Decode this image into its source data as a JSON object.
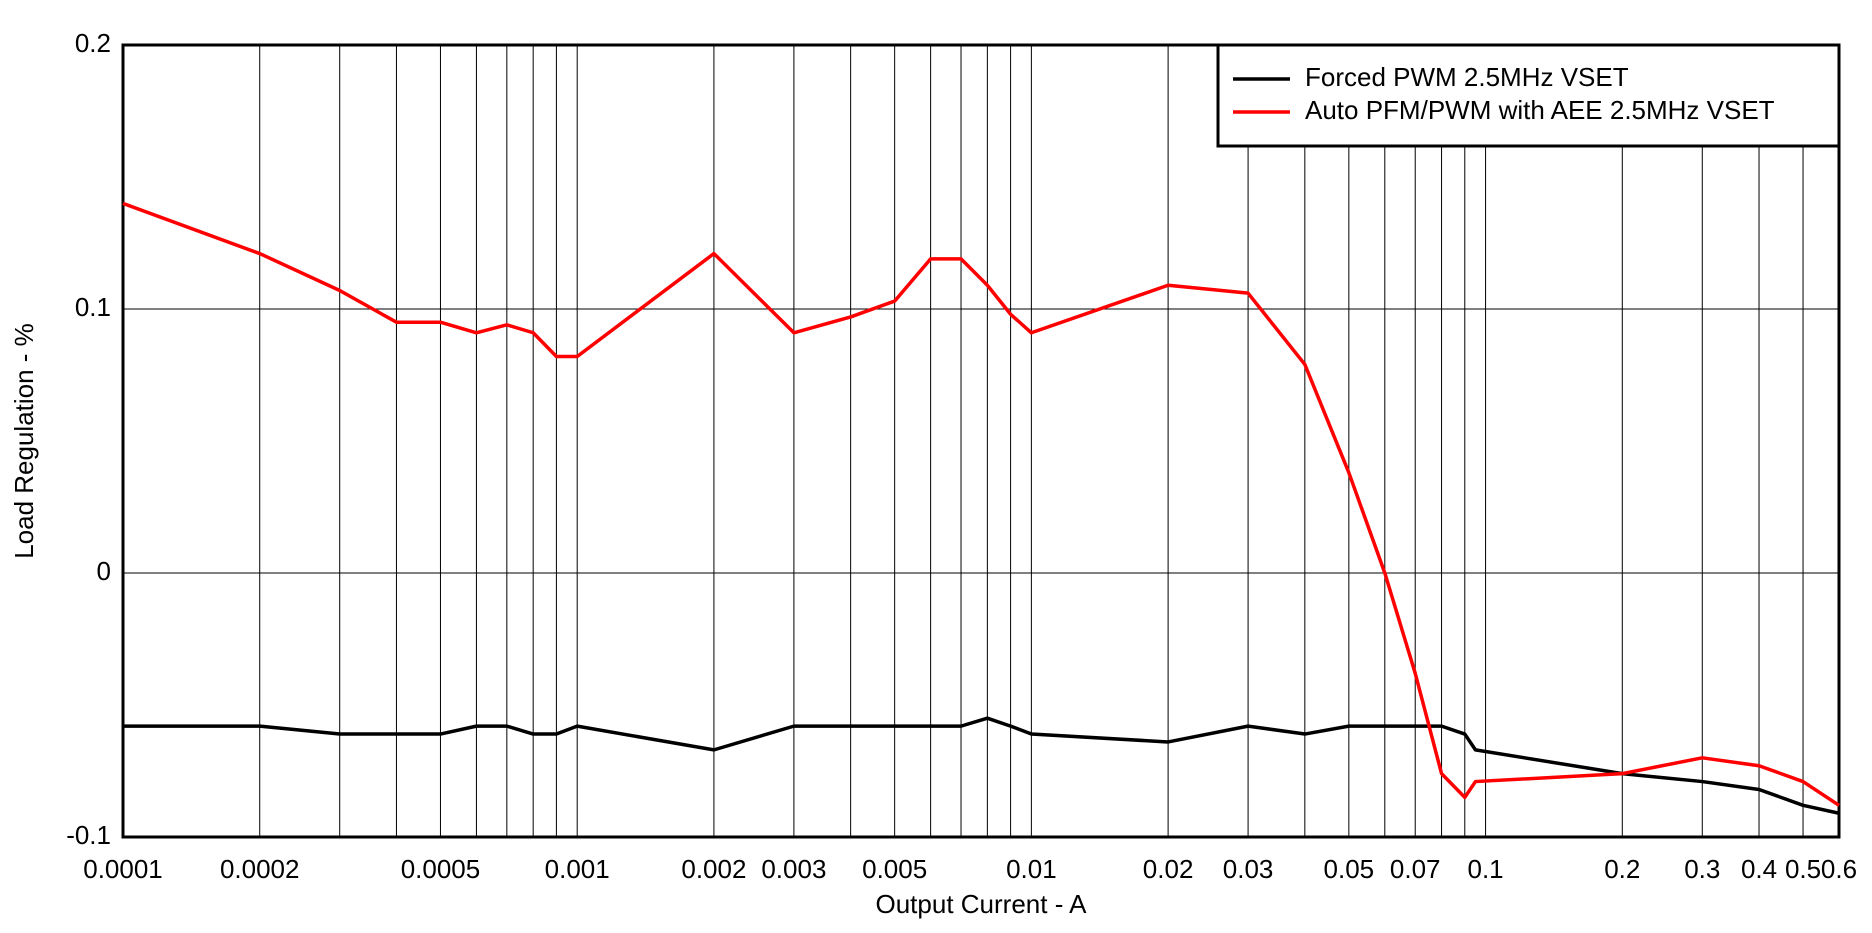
{
  "chart_data": {
    "type": "line",
    "x_label": "Output Current - A",
    "y_label": "Load Regulation - %",
    "x_scale": "log",
    "grid": true,
    "legend": "upper right",
    "x": [
      0.0001,
      0.0002,
      0.0003,
      0.0004,
      0.0005,
      0.0006,
      0.0007,
      0.0008,
      0.0009,
      0.001,
      0.002,
      0.003,
      0.004,
      0.005,
      0.006,
      0.007,
      0.008,
      0.009,
      0.01,
      0.02,
      0.03,
      0.04,
      0.05,
      0.06,
      0.07,
      0.08,
      0.09,
      0.095,
      0.2,
      0.3,
      0.4,
      0.5,
      0.6
    ],
    "series": [
      {
        "name": "Forced PWM 2.5MHz VSET",
        "color": "#000000",
        "values": [
          -0.058,
          -0.058,
          -0.061,
          -0.061,
          -0.061,
          -0.058,
          -0.058,
          -0.061,
          -0.061,
          -0.058,
          -0.067,
          -0.058,
          -0.058,
          -0.058,
          -0.058,
          -0.058,
          -0.055,
          -0.058,
          -0.061,
          -0.064,
          -0.058,
          -0.061,
          -0.058,
          -0.058,
          -0.058,
          -0.058,
          -0.061,
          -0.067,
          -0.076,
          -0.079,
          -0.082,
          -0.088,
          -0.091
        ]
      },
      {
        "name": "Auto PFM/PWM with AEE 2.5MHz VSET",
        "color": "#ff0000",
        "values": [
          0.14,
          0.121,
          0.107,
          0.095,
          0.095,
          0.091,
          0.094,
          0.091,
          0.082,
          0.082,
          0.121,
          0.091,
          0.097,
          0.103,
          0.119,
          0.119,
          0.109,
          0.098,
          0.091,
          0.109,
          0.106,
          0.079,
          0.038,
          0.0,
          -0.038,
          -0.076,
          -0.085,
          -0.079,
          -0.076,
          -0.07,
          -0.073,
          -0.079,
          -0.088
        ]
      }
    ],
    "xlim": [
      0.0001,
      0.6
    ],
    "xticks": [
      0.0001,
      0.0002,
      0.0005,
      0.001,
      0.002,
      0.003,
      0.005,
      0.01,
      0.02,
      0.03,
      0.05,
      0.07,
      0.1,
      0.2,
      0.3,
      0.4,
      0.5,
      0.6
    ],
    "xminor": [
      0.0003,
      0.0004,
      0.0006,
      0.0007,
      0.0008,
      0.0009,
      0.004,
      0.006,
      0.007,
      0.008,
      0.009,
      0.04,
      0.06,
      0.08,
      0.09
    ],
    "ylim": [
      -0.1,
      0.2
    ],
    "yticks": [
      -0.1,
      0,
      0.1,
      0.2
    ]
  }
}
